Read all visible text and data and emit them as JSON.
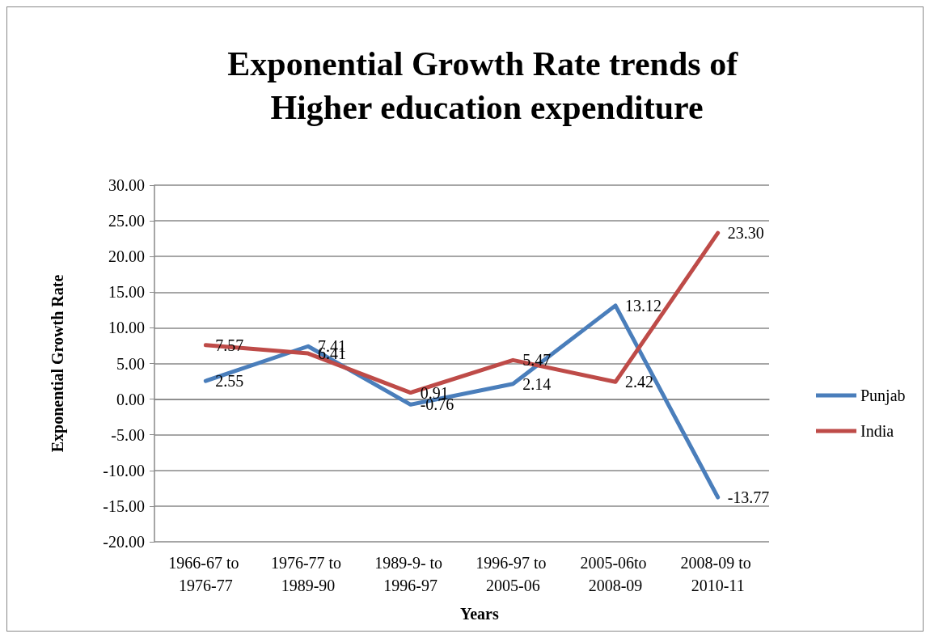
{
  "chart_data": {
    "type": "line",
    "title": "Exponential Growth Rate trends of Higher education expenditure",
    "xlabel": "Years",
    "ylabel": "Exponential Growth Rate",
    "categories": [
      "1966-67 to 1976-77",
      "1976-77 to 1989-90",
      "1989-9- to 1996-97",
      "1996-97 to 2005-06",
      "2005-06to 2008-09",
      "2008-09 to 2010-11"
    ],
    "series": [
      {
        "name": "Punjab",
        "color": "#4a7ebb",
        "values": [
          2.55,
          7.41,
          -0.76,
          2.14,
          13.12,
          -13.77
        ],
        "value_labels": [
          "2.55",
          "7.41",
          "-0.76",
          "2.14",
          "13.12",
          "-13.77"
        ]
      },
      {
        "name": "India",
        "color": "#be4b48",
        "values": [
          7.57,
          6.41,
          0.91,
          5.47,
          2.42,
          23.3
        ],
        "value_labels": [
          "7.57",
          "6.41",
          "0.91",
          "5.47",
          "2.42",
          "23.30"
        ]
      }
    ],
    "ylim": [
      -20,
      30
    ],
    "yticks": [
      {
        "value": -20,
        "label": "-20.00"
      },
      {
        "value": -15,
        "label": "-15.00"
      },
      {
        "value": -10,
        "label": "-10.00"
      },
      {
        "value": -5,
        "label": "-5.00"
      },
      {
        "value": 0,
        "label": "0.00"
      },
      {
        "value": 5,
        "label": "5.00"
      },
      {
        "value": 10,
        "label": "10.00"
      },
      {
        "value": 15,
        "label": "15.00"
      },
      {
        "value": 20,
        "label": "20.00"
      },
      {
        "value": 25,
        "label": "25.00"
      },
      {
        "value": 30,
        "label": "30.00"
      }
    ],
    "grid": "y",
    "legend": "right",
    "marker": "none",
    "line_style": "solid"
  }
}
